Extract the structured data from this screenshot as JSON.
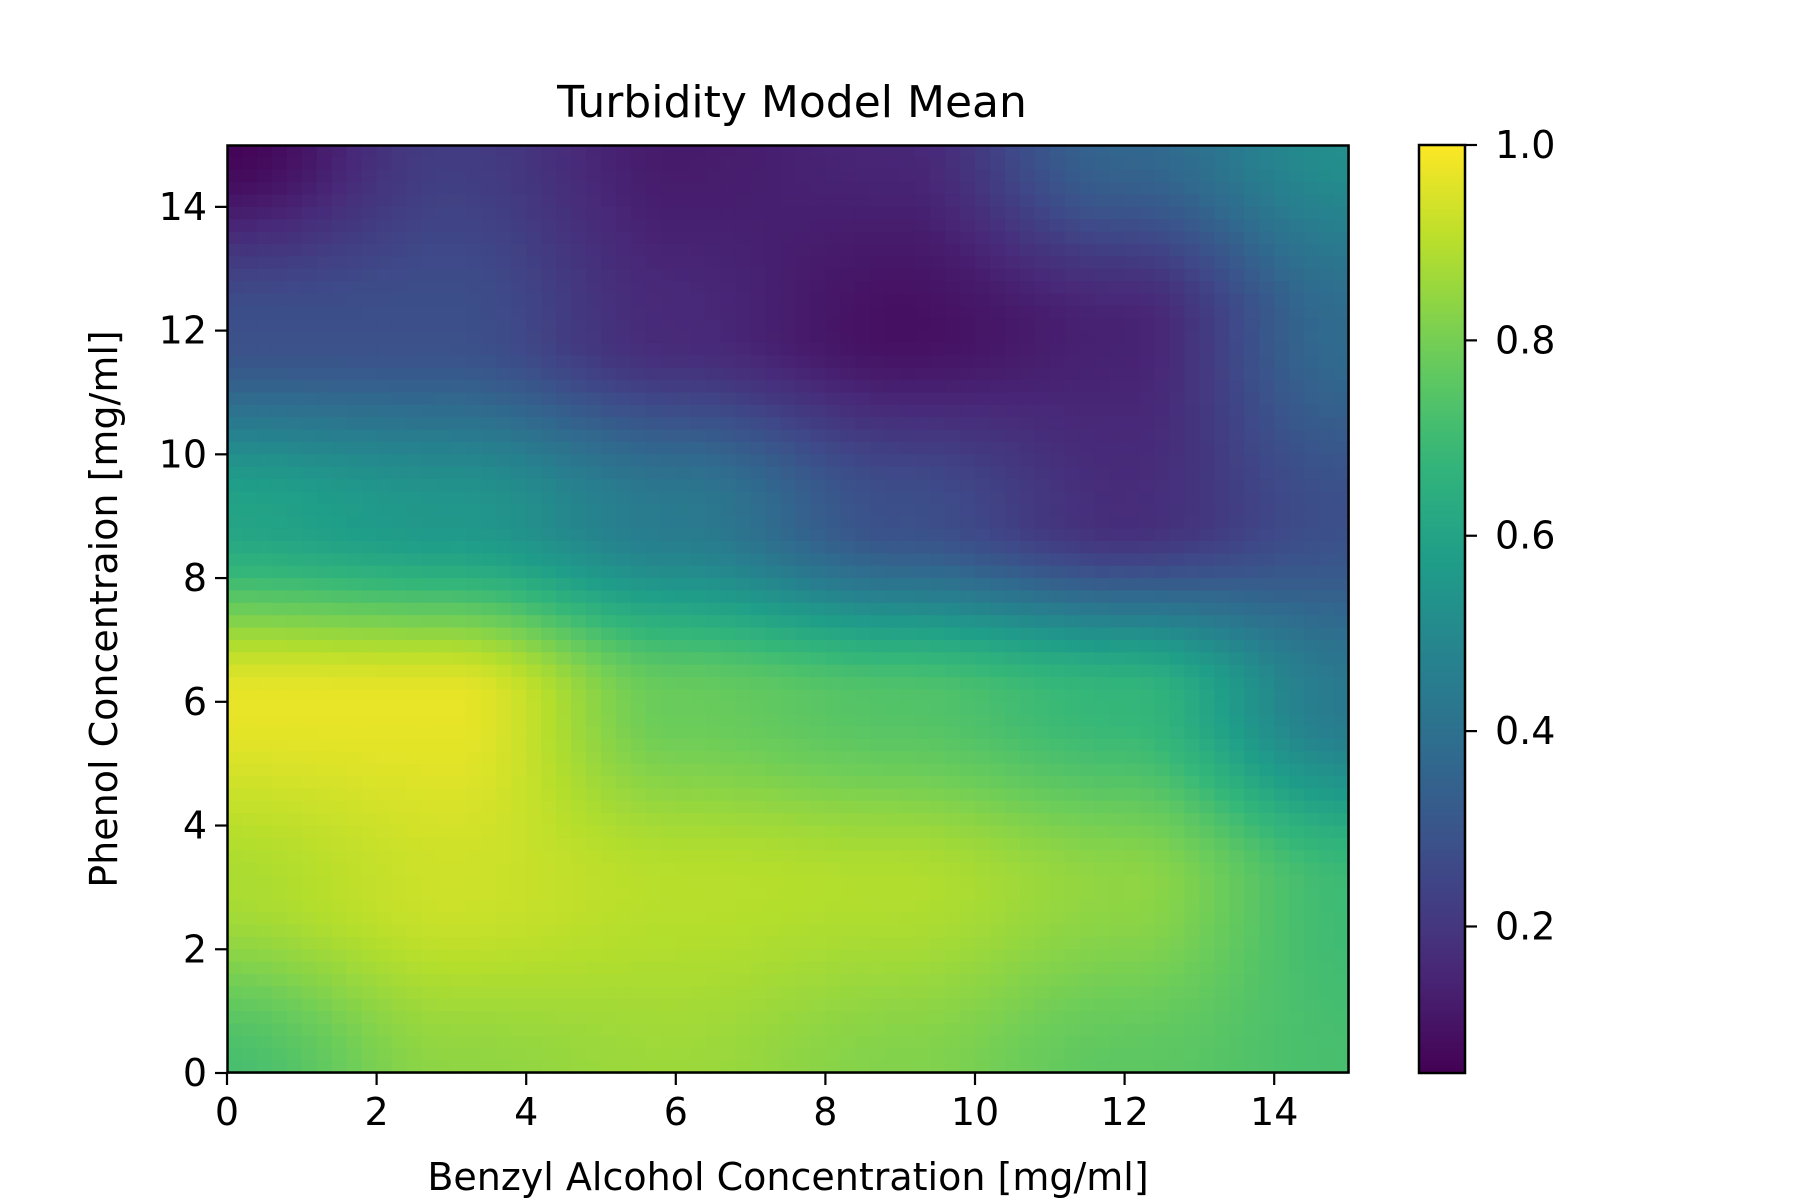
{
  "chart_data": {
    "type": "heatmap",
    "title": "Turbidity Model Mean",
    "xlabel": "Benzyl Alcohol Concentration [mg/ml]",
    "ylabel": "Phenol Concentraion [mg/ml]",
    "xlim": [
      0,
      15
    ],
    "ylim": [
      0,
      15
    ],
    "xticks": [
      0,
      2,
      4,
      6,
      8,
      10,
      12,
      14
    ],
    "yticks": [
      0,
      2,
      4,
      6,
      8,
      10,
      12,
      14
    ],
    "colormap": "viridis",
    "colorbar": {
      "range": [
        0.05,
        1.0
      ],
      "ticks": [
        0.2,
        0.4,
        0.6,
        0.8,
        1.0
      ],
      "tick_labels": [
        "0.2",
        "0.4",
        "0.6",
        "0.8",
        "1.0"
      ]
    },
    "grid": false,
    "x": [
      0,
      3,
      6,
      9,
      12,
      15
    ],
    "y": [
      0,
      3,
      6,
      9,
      12,
      15
    ],
    "z": [
      [
        0.72,
        0.84,
        0.86,
        0.82,
        0.76,
        0.72
      ],
      [
        0.88,
        0.93,
        0.9,
        0.89,
        0.84,
        0.7
      ],
      [
        0.97,
        0.97,
        0.78,
        0.74,
        0.68,
        0.44
      ],
      [
        0.6,
        0.55,
        0.44,
        0.28,
        0.17,
        0.28
      ],
      [
        0.28,
        0.28,
        0.16,
        0.09,
        0.14,
        0.38
      ],
      [
        0.06,
        0.22,
        0.12,
        0.15,
        0.36,
        0.52
      ]
    ]
  }
}
